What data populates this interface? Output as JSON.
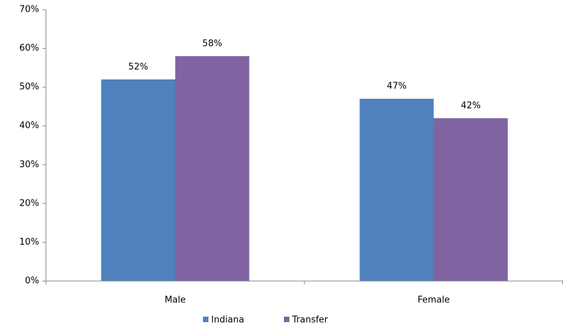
{
  "chart_data": {
    "type": "bar",
    "categories": [
      "Male",
      "Female"
    ],
    "series": [
      {
        "name": "Indiana",
        "color": "#4f81bd",
        "values": [
          52,
          47
        ],
        "value_labels": [
          "52%",
          "47%"
        ]
      },
      {
        "name": "Transfer",
        "color": "#8064a2",
        "values": [
          58,
          42
        ],
        "value_labels": [
          "58%",
          "42%"
        ]
      }
    ],
    "ylim": [
      0,
      70
    ],
    "yticks": [
      {
        "value": 0,
        "label": "0%"
      },
      {
        "value": 10,
        "label": "10%"
      },
      {
        "value": 20,
        "label": "20%"
      },
      {
        "value": 30,
        "label": "30%"
      },
      {
        "value": 40,
        "label": "40%"
      },
      {
        "value": 50,
        "label": "50%"
      },
      {
        "value": 60,
        "label": "60%"
      },
      {
        "value": 70,
        "label": "70%"
      }
    ],
    "grid": false,
    "legend": "bottom"
  }
}
